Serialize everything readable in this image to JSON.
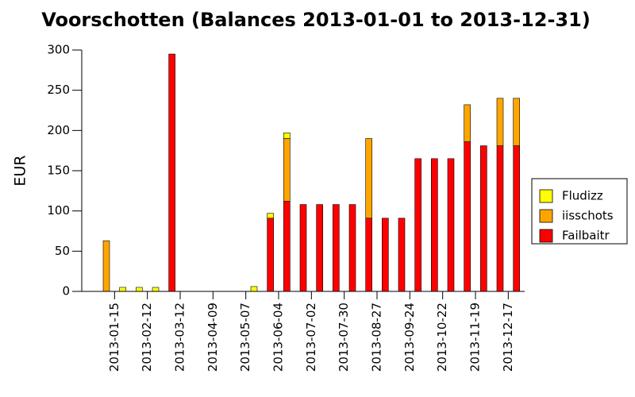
{
  "chart_data": {
    "type": "stacked_bar",
    "title": "Voorschotten (Balances 2013-01-01 to 2013-12-31)",
    "y_label": "EUR",
    "categories": [
      null,
      null,
      null,
      null,
      null,
      null,
      null,
      null,
      null,
      null,
      null,
      null,
      null,
      null,
      null,
      null,
      null,
      null,
      null,
      null,
      null,
      null,
      null,
      null,
      null,
      null
    ],
    "x_labels": [
      "2013-01-15",
      "2013-02-12",
      "2013-03-12",
      "2013-04-09",
      "2013-05-07",
      "2013-06-04",
      "2013-07-02",
      "2013-07-30",
      "2013-08-27",
      "2013-09-24",
      "2013-10-22",
      "2013-11-19",
      "2013-12-17"
    ],
    "series": [
      {
        "name": "Fludizz",
        "color": "#ffff00",
        "values": [
          0,
          5,
          5,
          5,
          0,
          0,
          0,
          0,
          0,
          6,
          6,
          7,
          0,
          0,
          0,
          0,
          0,
          0,
          0,
          0,
          0,
          0,
          0,
          0,
          0,
          0
        ]
      },
      {
        "name": "iisschots",
        "color": "#ffa500",
        "values": [
          63,
          0,
          0,
          0,
          0,
          0,
          0,
          0,
          0,
          0,
          0,
          78,
          0,
          0,
          0,
          0,
          99,
          0,
          0,
          0,
          0,
          0,
          46,
          0,
          59,
          59
        ]
      },
      {
        "name": "Failbaitr",
        "color": "#ff0000",
        "values": [
          0,
          0,
          0,
          0,
          295,
          0,
          0,
          0,
          0,
          0,
          91,
          112,
          108,
          108,
          108,
          108,
          91,
          91,
          91,
          165,
          165,
          165,
          186,
          181,
          181,
          181
        ]
      }
    ],
    "ylim": [
      0,
      300
    ],
    "yticks": [
      0,
      50,
      100,
      150,
      200,
      250,
      300
    ]
  }
}
